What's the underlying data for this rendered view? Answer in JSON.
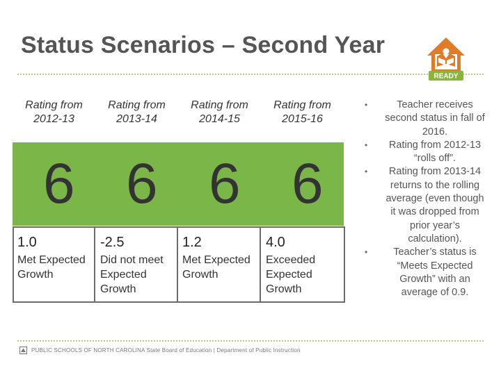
{
  "slide": {
    "title": "Status Scenarios – Second Year",
    "logo_text": "READY"
  },
  "years": [
    {
      "header": "Rating from 2012-13",
      "status_level": "6",
      "value": "1.0",
      "status": "Met Expected Growth"
    },
    {
      "header": "Rating from 2013-14",
      "status_level": "6",
      "value": "-2.5",
      "status": "Did not meet Expected Growth"
    },
    {
      "header": "Rating from 2014-15",
      "status_level": "6",
      "value": "1.2",
      "status": "Met Expected Growth"
    },
    {
      "header": "Rating from 2015-16",
      "status_level": "6",
      "value": "4.0",
      "status": "Exceeded Expected Growth"
    }
  ],
  "bullets": [
    "Teacher receives second status in fall of 2016.",
    "Rating from 2012-13 “rolls off”.",
    "Rating from 2013-14 returns to the rolling average (even though it was dropped from prior year’s calculation).",
    "Teacher’s status is “Meets Expected Growth” with an average of 0.9."
  ],
  "footer": {
    "text": "PUBLIC SCHOOLS OF NORTH CAROLINA State Board of Education | Department of Public Instruction"
  },
  "colors": {
    "green": "#7ab648",
    "logo_orange": "#e07b28",
    "logo_green": "#8ab53d",
    "rule": "#b7c98a"
  }
}
